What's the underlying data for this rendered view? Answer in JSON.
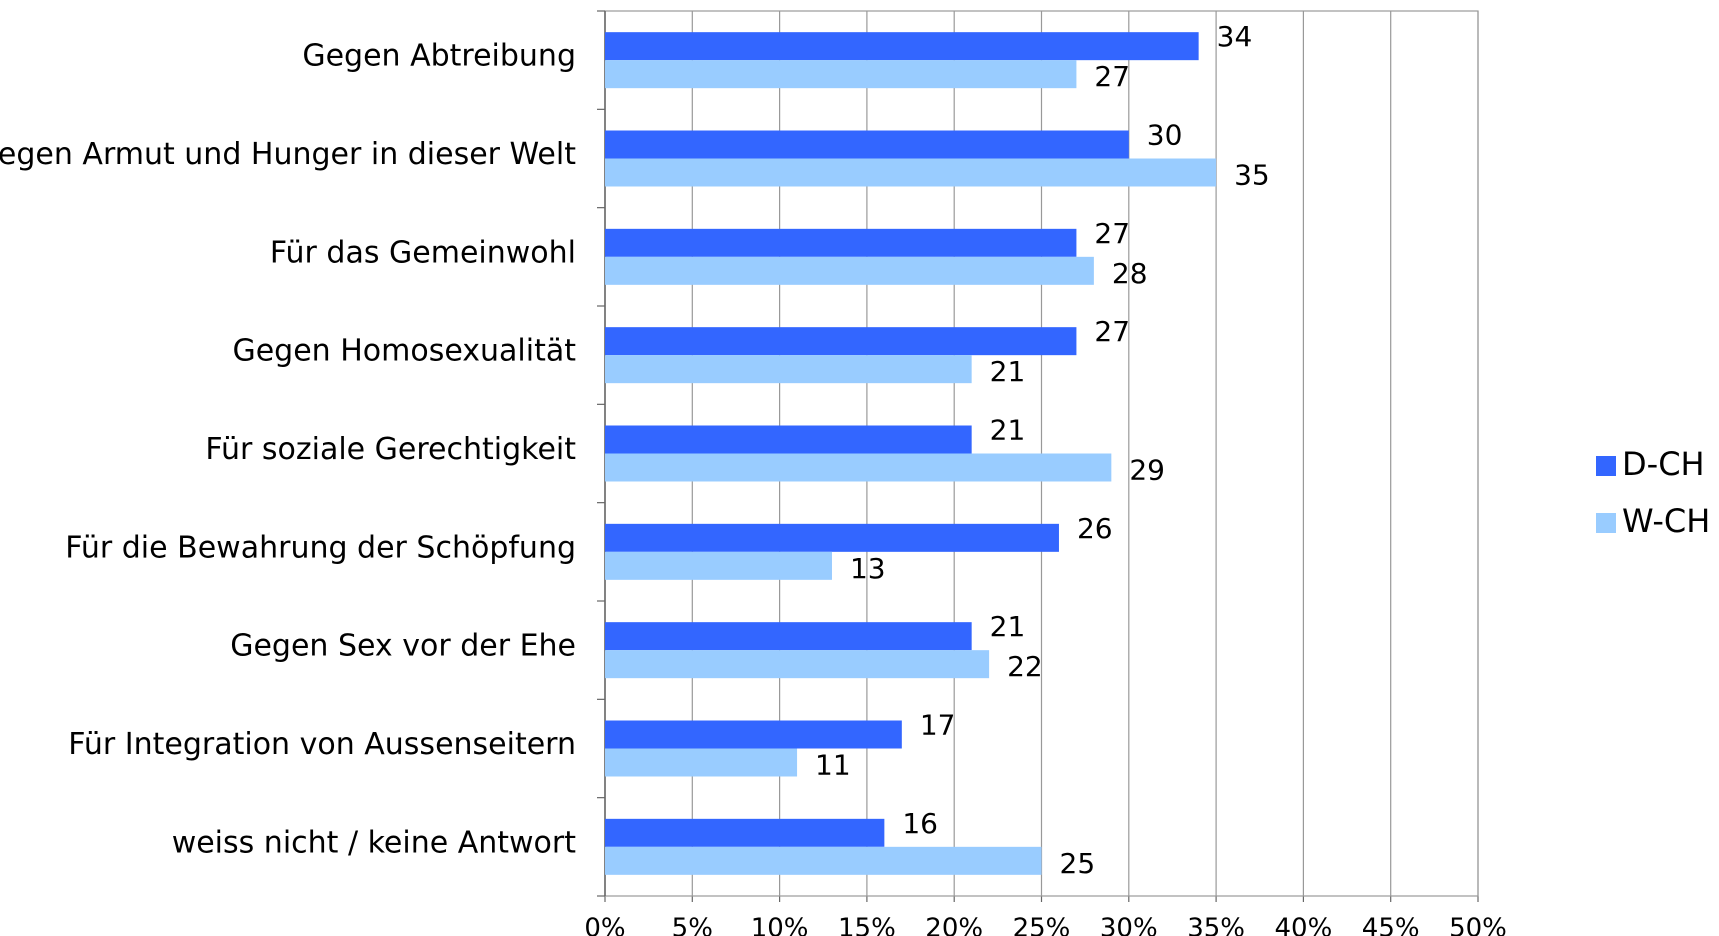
{
  "chart_data": {
    "type": "bar",
    "orientation": "horizontal",
    "categories": [
      "Gegen Abtreibung",
      "Gegen Armut und Hunger in dieser Welt",
      "Für das Gemeinwohl",
      "Gegen Homosexualität",
      "Für soziale Gerechtigkeit",
      "Für die Bewahrung der Schöpfung",
      "Gegen Sex vor der Ehe",
      "Für Integration von Aussenseitern",
      "weiss nicht / keine Antwort"
    ],
    "series": [
      {
        "name": "D-CH",
        "color": "#3366ff",
        "values": [
          34,
          30,
          27,
          27,
          21,
          26,
          21,
          17,
          16
        ]
      },
      {
        "name": "W-CH",
        "color": "#99ccff",
        "values": [
          27,
          35,
          28,
          21,
          29,
          13,
          22,
          11,
          25
        ]
      }
    ],
    "xlim": [
      0,
      50
    ],
    "xticks": [
      {
        "value": 0,
        "label": "0%"
      },
      {
        "value": 5,
        "label": "5%"
      },
      {
        "value": 10,
        "label": "10%"
      },
      {
        "value": 15,
        "label": "15%"
      },
      {
        "value": 20,
        "label": "20%"
      },
      {
        "value": 25,
        "label": "25%"
      },
      {
        "value": 30,
        "label": "30%"
      },
      {
        "value": 35,
        "label": "35%"
      },
      {
        "value": 40,
        "label": "40%"
      },
      {
        "value": 45,
        "label": "45%"
      },
      {
        "value": 50,
        "label": "50%"
      }
    ],
    "grid": true,
    "legend": "right"
  }
}
